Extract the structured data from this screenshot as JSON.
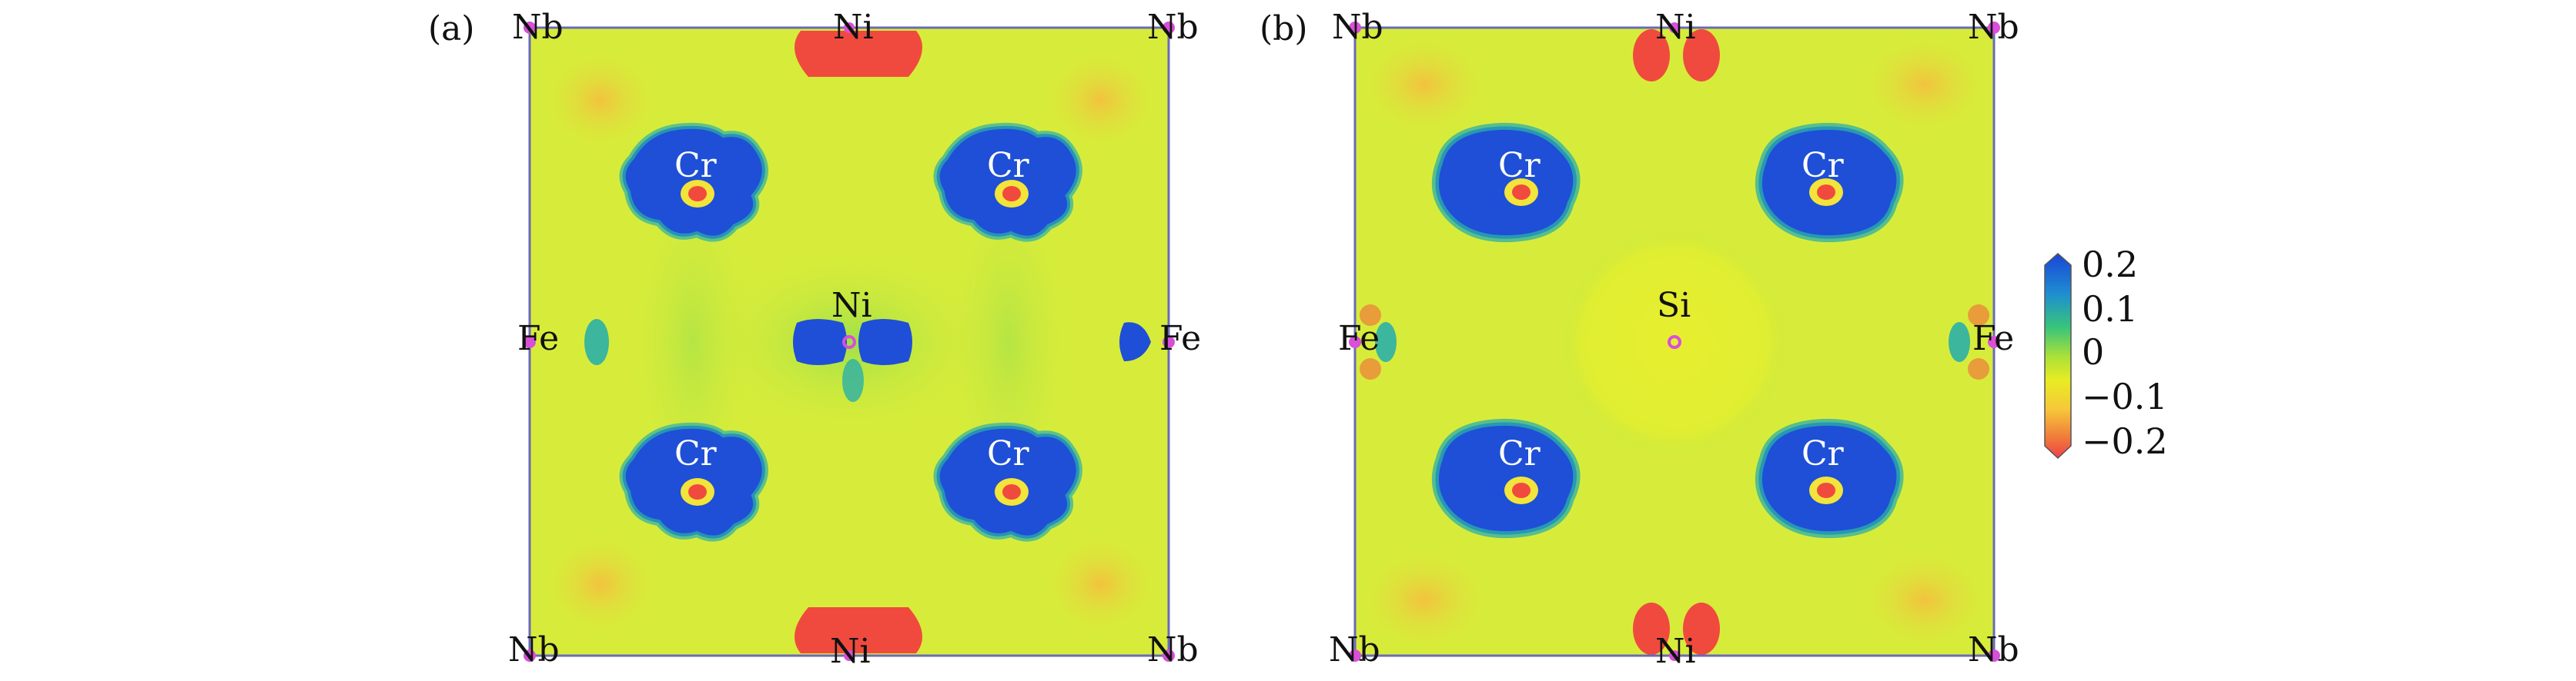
{
  "panels": [
    {
      "tag": "(a)",
      "corner_tl": "Nb",
      "corner_tr": "Nb",
      "corner_bl": "Nb",
      "corner_br": "Nb",
      "top": "Ni",
      "bottom": "Ni",
      "left": "Fe",
      "right": "Fe",
      "center": "Ni",
      "cr_labels": [
        "Cr",
        "Cr",
        "Cr",
        "Cr"
      ]
    },
    {
      "tag": "(b)",
      "corner_tl": "Nb",
      "corner_tr": "Nb",
      "corner_bl": "Nb",
      "corner_br": "Nb",
      "top": "Ni",
      "bottom": "Ni",
      "left": "Fe",
      "right": "Fe",
      "center": "Si",
      "cr_labels": [
        "Cr",
        "Cr",
        "Cr",
        "Cr"
      ]
    }
  ],
  "colorbar": {
    "ticks": [
      "0.2",
      "0.1",
      "0",
      "−0.1",
      "−0.2"
    ],
    "colors": [
      "#1a45d8",
      "#1f8fd0",
      "#38c47a",
      "#a8e03a",
      "#e8ec22",
      "#f6c83a",
      "#f07a3a",
      "#f0404a"
    ]
  },
  "colors": {
    "background_field": "#d7ec3a",
    "positive": "#1e4fd6",
    "negative": "#f04a3e",
    "atom_marker": "#d84fd8"
  }
}
